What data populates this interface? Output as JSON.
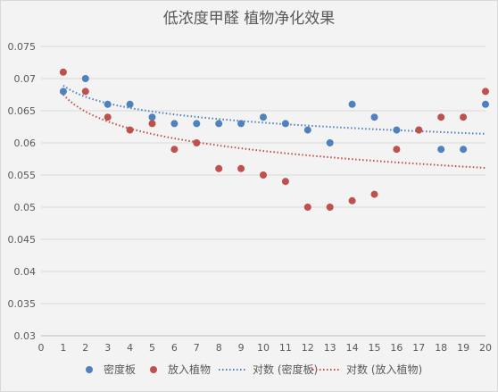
{
  "chart_data": {
    "type": "scatter",
    "title": "低浓度甲醛 植物净化效果",
    "xlabel": "",
    "ylabel": "",
    "xlim": [
      0,
      20
    ],
    "ylim": [
      0.03,
      0.075
    ],
    "x_ticks": [
      "0",
      "1",
      "2",
      "3",
      "4",
      "5",
      "6",
      "7",
      "8",
      "9",
      "10",
      "11",
      "12",
      "13",
      "14",
      "15",
      "16",
      "17",
      "18",
      "19",
      "20"
    ],
    "y_ticks": [
      "0.03",
      "0.035",
      "0.04",
      "0.045",
      "0.05",
      "0.055",
      "0.06",
      "0.065",
      "0.07",
      "0.075"
    ],
    "grid": "horizontal",
    "legend_position": "bottom",
    "series": [
      {
        "name": "密度板",
        "color": "#4e81bd",
        "x": [
          1,
          2,
          3,
          4,
          5,
          6,
          7,
          8,
          9,
          10,
          11,
          12,
          13,
          14,
          15,
          16,
          17,
          18,
          19,
          20
        ],
        "y": [
          0.068,
          0.07,
          0.066,
          0.066,
          0.064,
          0.063,
          0.063,
          0.063,
          0.063,
          0.064,
          0.063,
          0.062,
          0.06,
          0.066,
          0.064,
          0.062,
          0.062,
          0.059,
          0.059,
          0.066
        ]
      },
      {
        "name": "放入植物",
        "color": "#c0504d",
        "x": [
          1,
          2,
          3,
          4,
          5,
          6,
          7,
          8,
          9,
          10,
          11,
          12,
          13,
          14,
          15,
          16,
          17,
          18,
          19,
          20
        ],
        "y": [
          0.071,
          0.068,
          0.064,
          0.062,
          0.063,
          0.059,
          0.06,
          0.056,
          0.056,
          0.055,
          0.054,
          0.05,
          0.05,
          0.051,
          0.052,
          0.059,
          0.062,
          0.064,
          0.064,
          0.068
        ]
      }
    ],
    "trendlines": [
      {
        "name": "对数 (密度板)",
        "type": "logarithmic",
        "color": "#4e81bd",
        "a": 0.0689,
        "b": -0.0025
      },
      {
        "name": "对数 (放入植物)",
        "type": "logarithmic",
        "color": "#c0504d",
        "a": 0.0675,
        "b": -0.0038
      }
    ],
    "legend": [
      "密度板",
      "放入植物",
      "对数 (密度板)",
      "对数 (放入植物)"
    ]
  }
}
